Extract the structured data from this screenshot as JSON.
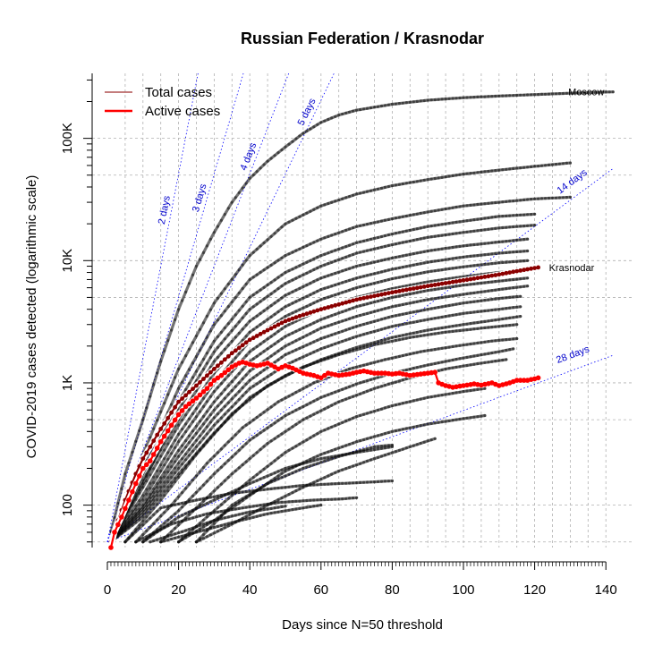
{
  "chart_data": {
    "type": "line",
    "title": "Russian Federation / Krasnodar",
    "xlabel": "Days since N=50 threshold",
    "ylabel": "COVID-2019 cases detected (logarithmic scale)",
    "xlim": [
      0,
      142
    ],
    "ylim": [
      45,
      340000
    ],
    "y_scale": "log",
    "x_ticks": [
      0,
      20,
      40,
      60,
      80,
      100,
      120,
      140
    ],
    "x_tick_labels": [
      "0",
      "20",
      "40",
      "60",
      "80",
      "100",
      "120",
      "140"
    ],
    "y_ticks": [
      100,
      1000,
      10000,
      100000
    ],
    "y_tick_labels": [
      "100",
      "1K",
      "10K",
      "100K"
    ],
    "grid": true,
    "legend": {
      "position": "top-left",
      "entries": [
        {
          "label": "Total cases",
          "color": "#b05050"
        },
        {
          "label": "Active cases",
          "color": "#ff0000"
        }
      ]
    },
    "doubling_lines": [
      {
        "label": "2 days",
        "days": 2
      },
      {
        "label": "3 days",
        "days": 3
      },
      {
        "label": "4 days",
        "days": 4
      },
      {
        "label": "5 days",
        "days": 5
      },
      {
        "label": "14 days",
        "days": 14
      },
      {
        "label": "28 days",
        "days": 28
      }
    ],
    "highlight_total": {
      "name": "Krasnodar",
      "color": "#8b0000",
      "x": [
        1,
        3,
        5,
        8,
        10,
        15,
        20,
        25,
        30,
        35,
        40,
        45,
        50,
        55,
        60,
        70,
        80,
        90,
        100,
        110,
        115,
        121
      ],
      "values": [
        50,
        75,
        110,
        180,
        240,
        420,
        700,
        950,
        1300,
        1750,
        2250,
        2700,
        3200,
        3600,
        4000,
        4800,
        5500,
        6200,
        6900,
        7700,
        8200,
        8800
      ]
    },
    "highlight_active": {
      "name": "Krasnodar active",
      "color": "#ff0000",
      "x": [
        1,
        2,
        4,
        6,
        8,
        10,
        12,
        15,
        18,
        20,
        22,
        25,
        28,
        30,
        32,
        35,
        37,
        38,
        40,
        42,
        45,
        48,
        50,
        52,
        55,
        58,
        60,
        62,
        65,
        68,
        70,
        72,
        75,
        78,
        80,
        82,
        85,
        88,
        90,
        92,
        93,
        95,
        97,
        100,
        103,
        105,
        108,
        110,
        113,
        115,
        118,
        120,
        121
      ],
      "values": [
        45,
        60,
        80,
        110,
        150,
        200,
        230,
        330,
        450,
        550,
        640,
        750,
        900,
        1050,
        1150,
        1350,
        1450,
        1480,
        1420,
        1380,
        1450,
        1300,
        1380,
        1320,
        1200,
        1150,
        1100,
        1200,
        1150,
        1180,
        1220,
        1250,
        1200,
        1200,
        1180,
        1200,
        1150,
        1180,
        1200,
        1220,
        1000,
        950,
        920,
        950,
        980,
        960,
        1000,
        950,
        1000,
        1050,
        1050,
        1080,
        1100
      ]
    },
    "background_series": [
      {
        "name": "Moscow",
        "x": [
          1,
          5,
          10,
          15,
          20,
          25,
          30,
          35,
          40,
          45,
          50,
          55,
          60,
          65,
          70,
          80,
          90,
          100,
          110,
          120,
          130,
          142
        ],
        "values": [
          60,
          180,
          500,
          1500,
          4000,
          9000,
          17000,
          30000,
          47000,
          65000,
          85000,
          110000,
          135000,
          155000,
          170000,
          190000,
          205000,
          215000,
          222000,
          228000,
          234000,
          240000
        ]
      },
      {
        "name": "",
        "x": [
          1,
          10,
          20,
          30,
          40,
          50,
          60,
          70,
          80,
          90,
          100,
          110,
          120,
          130
        ],
        "values": [
          55,
          260,
          1300,
          4500,
          11000,
          20000,
          28000,
          35000,
          41000,
          46000,
          51000,
          55000,
          59000,
          63000
        ]
      },
      {
        "name": "",
        "x": [
          1,
          10,
          20,
          30,
          40,
          50,
          60,
          70,
          80,
          90,
          100,
          110,
          120,
          130
        ],
        "values": [
          52,
          200,
          900,
          3000,
          7000,
          11000,
          15000,
          19000,
          22000,
          25000,
          28000,
          30000,
          32000,
          33000
        ]
      },
      {
        "name": "",
        "x": [
          1,
          10,
          20,
          30,
          40,
          50,
          60,
          70,
          80,
          90,
          100,
          110,
          120
        ],
        "values": [
          50,
          180,
          700,
          2200,
          5000,
          8000,
          11000,
          14000,
          16500,
          19000,
          21000,
          23000,
          24000
        ]
      },
      {
        "name": "",
        "x": [
          1,
          10,
          20,
          30,
          40,
          50,
          60,
          70,
          80,
          90,
          100,
          110,
          120
        ],
        "values": [
          50,
          150,
          600,
          1800,
          4000,
          6500,
          9000,
          11500,
          13500,
          15500,
          17000,
          18500,
          19500
        ]
      },
      {
        "name": "",
        "x": [
          1,
          10,
          20,
          30,
          40,
          50,
          60,
          70,
          80,
          90,
          100,
          110,
          118
        ],
        "values": [
          50,
          160,
          500,
          1500,
          3200,
          5200,
          7200,
          9000,
          10500,
          12000,
          13200,
          14200,
          15000
        ]
      },
      {
        "name": "",
        "x": [
          1,
          10,
          20,
          30,
          40,
          50,
          60,
          70,
          80,
          90,
          100,
          110,
          118
        ],
        "values": [
          50,
          140,
          450,
          1200,
          2600,
          4200,
          5800,
          7200,
          8500,
          9700,
          10700,
          11500,
          12000
        ]
      },
      {
        "name": "",
        "x": [
          1,
          10,
          20,
          30,
          40,
          50,
          60,
          70,
          80,
          90,
          100,
          110,
          118
        ],
        "values": [
          50,
          120,
          380,
          1000,
          2200,
          3500,
          4800,
          6000,
          7100,
          8100,
          8900,
          9600,
          10000
        ]
      },
      {
        "name": "",
        "x": [
          1,
          10,
          20,
          30,
          40,
          50,
          60,
          70,
          80,
          90,
          100,
          110,
          118
        ],
        "values": [
          50,
          110,
          330,
          850,
          1800,
          2900,
          4000,
          5000,
          5900,
          6700,
          7400,
          8000,
          8400
        ]
      },
      {
        "name": "",
        "x": [
          1,
          10,
          20,
          30,
          40,
          50,
          60,
          70,
          80,
          90,
          100,
          110,
          118
        ],
        "values": [
          50,
          100,
          280,
          700,
          1500,
          2400,
          3300,
          4200,
          5000,
          5700,
          6300,
          6800,
          7200
        ]
      },
      {
        "name": "",
        "x": [
          1,
          10,
          20,
          30,
          40,
          50,
          60,
          70,
          80,
          90,
          100,
          110,
          118
        ],
        "values": [
          50,
          95,
          250,
          600,
          1250,
          2000,
          2800,
          3500,
          4200,
          4800,
          5300,
          5800,
          6200
        ]
      },
      {
        "name": "",
        "x": [
          1,
          10,
          20,
          30,
          40,
          50,
          60,
          70,
          80,
          90,
          100,
          110,
          116
        ],
        "values": [
          50,
          90,
          220,
          520,
          1050,
          1700,
          2300,
          2900,
          3500,
          4000,
          4500,
          4900,
          5100
        ]
      },
      {
        "name": "",
        "x": [
          1,
          10,
          20,
          30,
          40,
          50,
          60,
          70,
          80,
          90,
          100,
          110,
          116
        ],
        "values": [
          50,
          85,
          200,
          450,
          900,
          1400,
          1900,
          2400,
          2900,
          3300,
          3700,
          4000,
          4200
        ]
      },
      {
        "name": "",
        "x": [
          1,
          10,
          20,
          30,
          40,
          50,
          60,
          70,
          80,
          90,
          100,
          110,
          116
        ],
        "values": [
          50,
          80,
          180,
          390,
          760,
          1150,
          1550,
          1950,
          2350,
          2700,
          3000,
          3300,
          3500
        ]
      },
      {
        "name": "",
        "x": [
          5,
          15,
          25,
          35,
          45,
          55,
          65,
          75,
          85,
          95,
          105,
          115
        ],
        "values": [
          50,
          110,
          260,
          560,
          950,
          1350,
          1700,
          2050,
          2350,
          2600,
          2800,
          3000
        ]
      },
      {
        "name": "",
        "x": [
          8,
          18,
          28,
          38,
          48,
          58,
          68,
          78,
          88,
          98,
          108,
          115
        ],
        "values": [
          50,
          100,
          220,
          430,
          700,
          1000,
          1300,
          1550,
          1800,
          2000,
          2200,
          2300
        ]
      },
      {
        "name": "",
        "x": [
          10,
          20,
          30,
          40,
          50,
          60,
          70,
          80,
          90,
          100,
          110,
          114
        ],
        "values": [
          50,
          90,
          180,
          340,
          540,
          760,
          980,
          1200,
          1400,
          1600,
          1800,
          1900
        ]
      },
      {
        "name": "",
        "x": [
          15,
          25,
          35,
          45,
          55,
          65,
          75,
          85,
          95,
          105,
          112
        ],
        "values": [
          50,
          95,
          180,
          320,
          500,
          700,
          900,
          1100,
          1300,
          1450,
          1550
        ]
      },
      {
        "name": "",
        "x": [
          20,
          30,
          40,
          50,
          60,
          70,
          80,
          90,
          100,
          106
        ],
        "values": [
          50,
          90,
          160,
          270,
          400,
          530,
          650,
          760,
          850,
          900
        ]
      },
      {
        "name": "",
        "x": [
          20,
          30,
          40,
          50,
          60,
          70,
          80,
          90,
          100,
          106
        ],
        "values": [
          50,
          75,
          120,
          190,
          260,
          330,
          400,
          460,
          510,
          540
        ]
      },
      {
        "name": "",
        "x": [
          25,
          35,
          45,
          55,
          65,
          75,
          85,
          92
        ],
        "values": [
          50,
          70,
          100,
          140,
          190,
          240,
          300,
          350
        ]
      },
      {
        "name": "",
        "x": [
          10,
          20,
          30,
          40,
          50,
          60,
          70,
          80
        ],
        "values": [
          50,
          80,
          110,
          150,
          200,
          240,
          270,
          300
        ]
      },
      {
        "name": "",
        "x": [
          25,
          35,
          45,
          55,
          65,
          75,
          80
        ],
        "values": [
          50,
          100,
          150,
          200,
          250,
          300,
          310
        ]
      },
      {
        "name": "",
        "x": [
          5,
          15,
          25,
          35,
          45,
          55,
          65,
          75,
          80
        ],
        "values": [
          50,
          95,
          110,
          125,
          135,
          145,
          150,
          155,
          158
        ]
      },
      {
        "name": "",
        "x": [
          8,
          18,
          28,
          38,
          48,
          58,
          65,
          70
        ],
        "values": [
          50,
          70,
          85,
          95,
          105,
          110,
          112,
          115
        ]
      },
      {
        "name": "",
        "x": [
          15,
          25,
          35,
          45,
          55,
          60
        ],
        "values": [
          50,
          60,
          72,
          85,
          95,
          100
        ]
      },
      {
        "name": "",
        "x": [
          12,
          22,
          30,
          40,
          50
        ],
        "values": [
          50,
          62,
          75,
          88,
          98
        ]
      }
    ],
    "end_labels": [
      {
        "text": "Moscow",
        "series": "Moscow"
      },
      {
        "text": "Krasnodar",
        "series": "Krasnodar"
      }
    ]
  }
}
